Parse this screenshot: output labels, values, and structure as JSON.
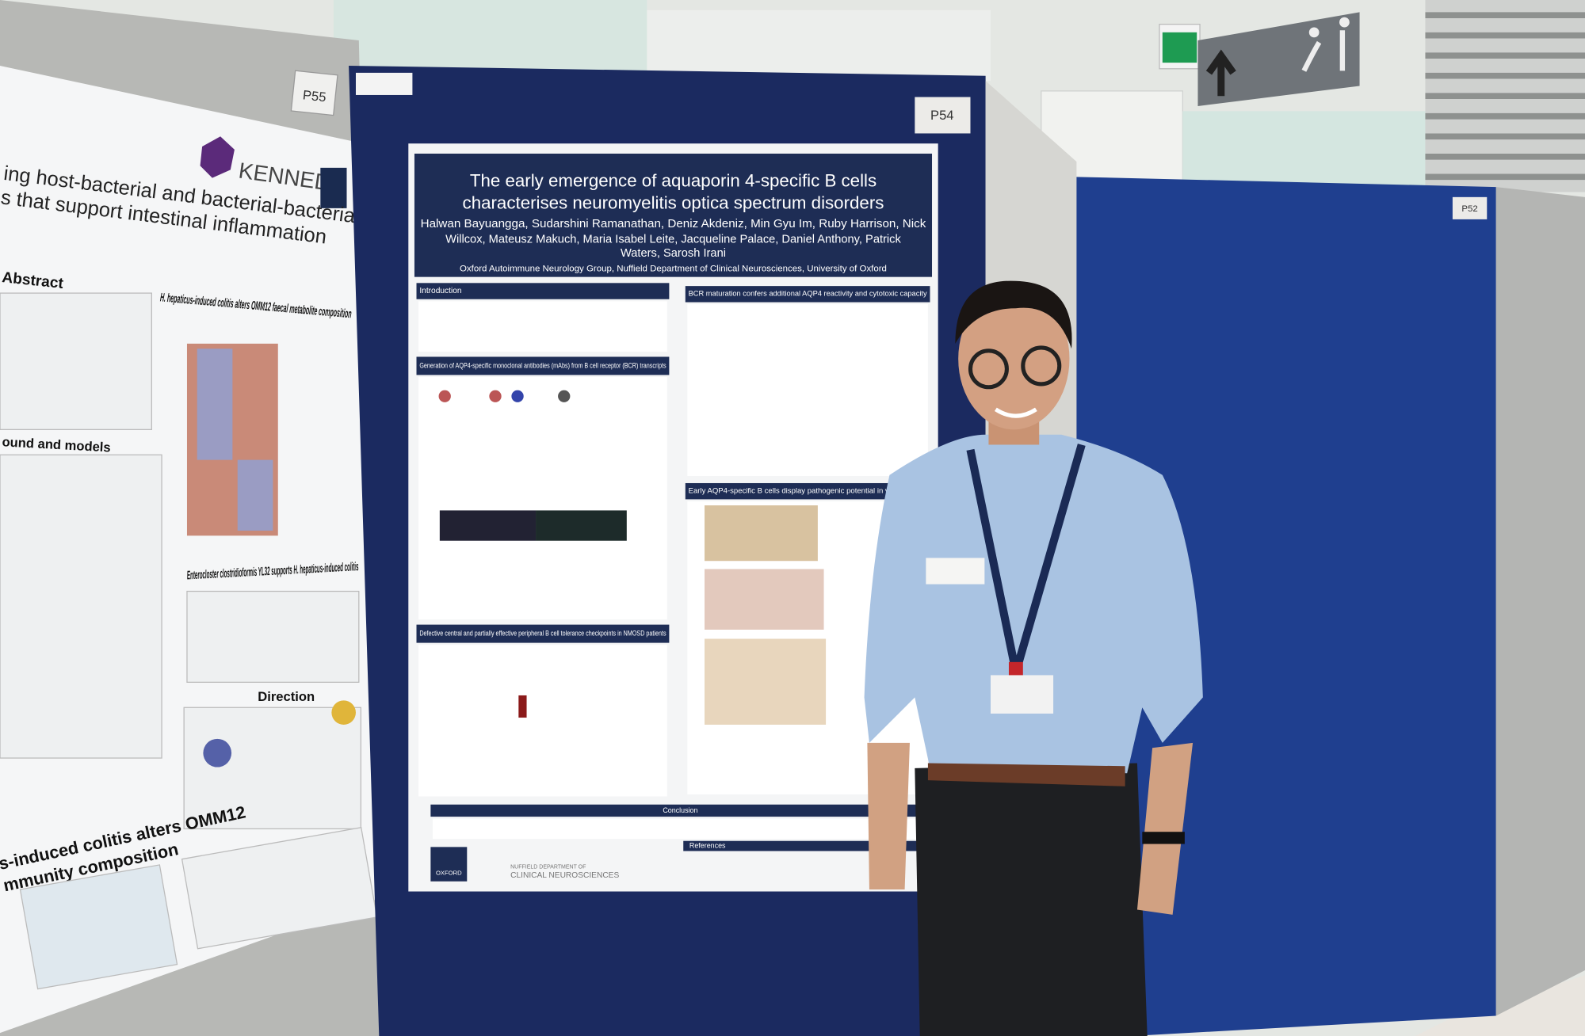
{
  "poster_p54": {
    "label": "P54",
    "title_lines": [
      "The early emergence of aquaporin 4-specific B cells",
      "characterises neuromyelitis optica spectrum disorders"
    ],
    "author_lines": [
      "Halwan Bayuangga, Sudarshini Ramanathan, Deniz Akdeniz, Min Gyu Im, Ruby Harrison, Nick",
      "Willcox, Mateusz Makuch, Maria Isabel Leite, Jacqueline Palace, Daniel Anthony, Patrick",
      "Waters, Sarosh Irani"
    ],
    "affiliation": "Oxford Autoimmune Neurology Group, Nuffield Department of Clinical Neurosciences, University of Oxford",
    "sections": [
      "Introduction",
      "Generation of AQP4-specific monoclonal antibodies (mAbs) from B cell receptor (BCR) transcripts",
      "BCR maturation confers additional AQP4 reactivity and cytotoxic capacity",
      "Early AQP4-specific B cells display pathogenic potential in vivo",
      "Defective central and partially effective peripheral B cell tolerance checkpoints in NMOSD patients",
      "Conclusion",
      "References"
    ],
    "logos": [
      "OXFORD",
      "NUFFIELD DEPARTMENT OF",
      "CLINICAL NEUROSCIENCES"
    ]
  },
  "poster_p55": {
    "label": "P55",
    "brand": "KENNEDY",
    "title_lines": [
      "ing host-bacterial and bacterial-bacterial",
      "s that support intestinal inflammation"
    ],
    "headings": [
      "Abstract",
      "H. hepaticus-induced colitis alters OMM12 faecal metabolite composition",
      "ound and models",
      "Enterocloster clostridioformis YL32 supports H. hepaticus-induced colitis",
      "Direction",
      "s-induced colitis alters OMM12",
      "mmunity composition"
    ]
  },
  "poster_p52": {
    "label": "P52"
  }
}
